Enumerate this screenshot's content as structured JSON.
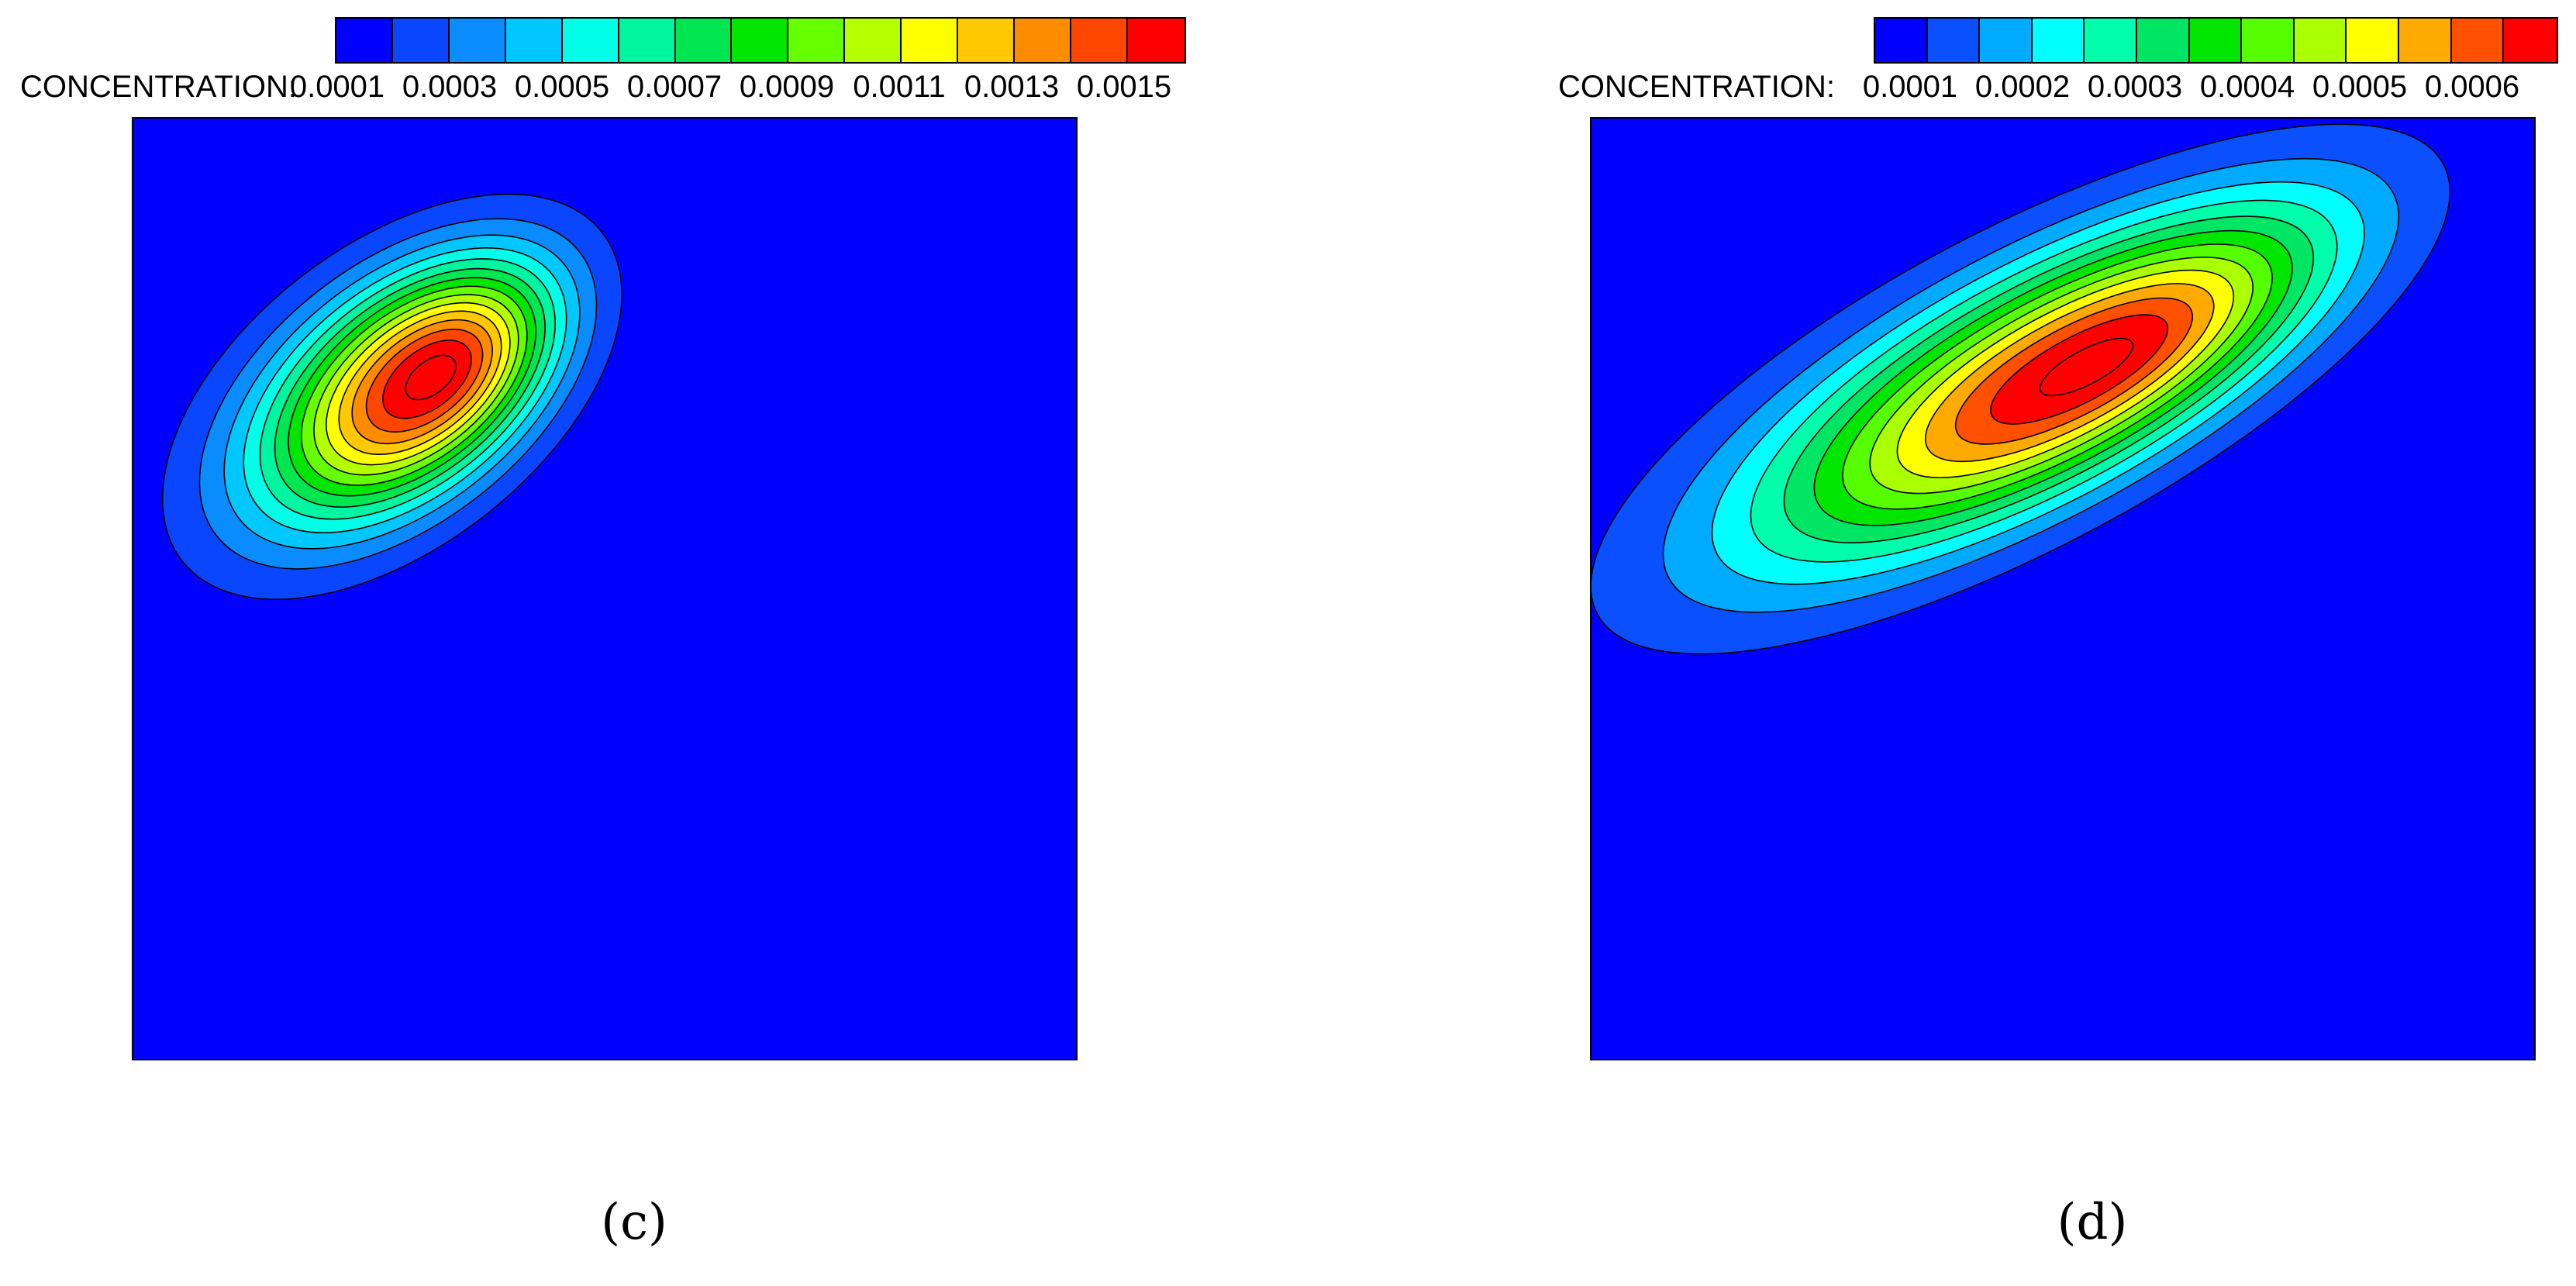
{
  "chart_data": [
    {
      "type": "heatmap",
      "panel_label": "(c)",
      "legend_title": "CONCENTRATION:",
      "tick_labels": [
        "0.0001",
        "0.0003",
        "0.0005",
        "0.0007",
        "0.0009",
        "0.0011",
        "0.0013",
        "0.0015"
      ],
      "levels": [
        0.0001,
        0.0002,
        0.0003,
        0.0004,
        0.0005,
        0.0006,
        0.0007,
        0.0008,
        0.0009,
        0.001,
        0.0011,
        0.0012,
        0.0013,
        0.0014,
        0.0015
      ],
      "colors": [
        "#0000ff",
        "#0a46ff",
        "#0a8cff",
        "#00c8ff",
        "#00ffe6",
        "#00f5a0",
        "#00e650",
        "#00e600",
        "#66ff00",
        "#b4ff00",
        "#ffff00",
        "#ffc800",
        "#ff8c00",
        "#ff4600",
        "#ff0000"
      ],
      "background_color": "#0000ff",
      "peak_value": 0.00155,
      "grid": false,
      "legend_placement": "top"
    },
    {
      "type": "heatmap",
      "panel_label": "(d)",
      "legend_title": "CONCENTRATION:",
      "tick_labels": [
        "0.0001",
        "0.0002",
        "0.0003",
        "0.0004",
        "0.0005",
        "0.0006"
      ],
      "levels": [
        5e-05,
        0.0001,
        0.00015,
        0.0002,
        0.00025,
        0.0003,
        0.00035,
        0.0004,
        0.00045,
        0.0005,
        0.00055,
        0.0006,
        0.00065
      ],
      "colors": [
        "#0000ff",
        "#0a50ff",
        "#00aaff",
        "#00ffff",
        "#00ffaa",
        "#00e664",
        "#00e600",
        "#55ff00",
        "#aaff00",
        "#ffff00",
        "#ffaa00",
        "#ff5000",
        "#ff0000"
      ],
      "background_color": "#0000ff",
      "peak_value": 0.00067,
      "grid": false,
      "legend_placement": "top"
    }
  ]
}
